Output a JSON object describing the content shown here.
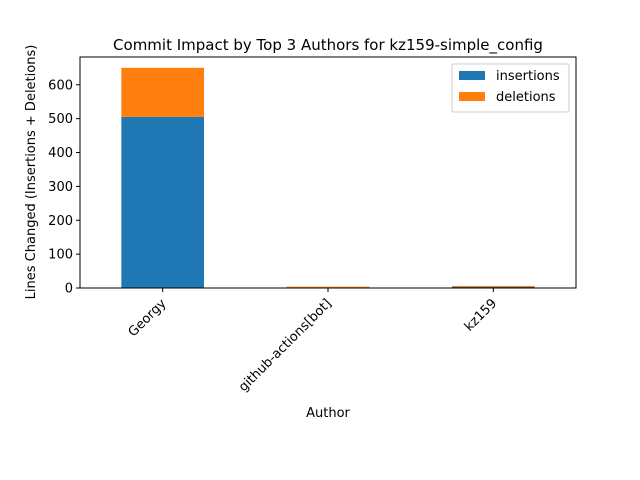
{
  "chart_data": {
    "type": "bar",
    "stacked": true,
    "title": "Commit Impact by Top 3 Authors for kz159-simple_config",
    "xlabel": "Author",
    "ylabel": "Lines Changed (Insertions + Deletions)",
    "categories": [
      "Georgy",
      "github-actions[bot]",
      "kz159"
    ],
    "series": [
      {
        "name": "insertions",
        "values": [
          505,
          2,
          3
        ],
        "color": "#1f77b4"
      },
      {
        "name": "deletions",
        "values": [
          145,
          2,
          3
        ],
        "color": "#ff7f0e"
      }
    ],
    "ylim": [
      0,
      682
    ],
    "yticks": [
      0,
      100,
      200,
      300,
      400,
      500,
      600
    ],
    "grid": false,
    "legend_position": "top-right"
  }
}
